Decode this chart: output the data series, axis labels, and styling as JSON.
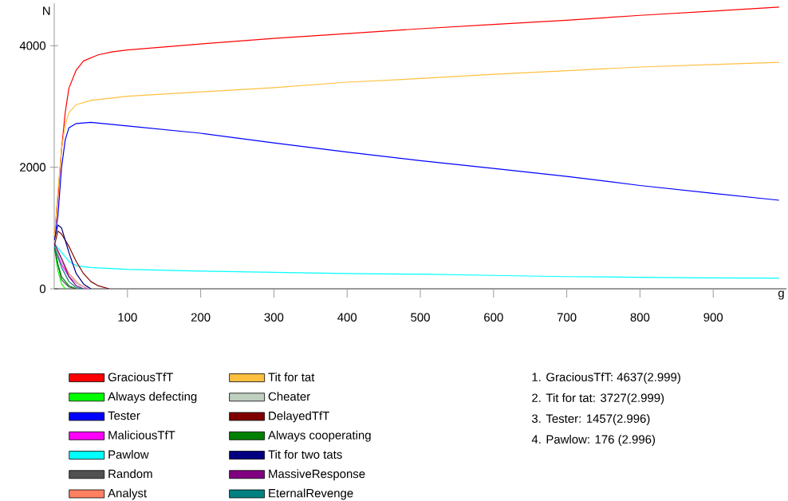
{
  "chart_data": {
    "type": "line",
    "xlabel": "g",
    "ylabel": "N",
    "xlim": [
      0,
      1000
    ],
    "ylim": [
      0,
      4700
    ],
    "xticks": [
      100,
      200,
      300,
      400,
      500,
      600,
      700,
      800,
      900
    ],
    "yticks": [
      0,
      2000,
      4000
    ],
    "grid": false,
    "legend": "bottom",
    "marker": "none",
    "line_style": "solid",
    "series": [
      {
        "name": "GraciousTfT",
        "color": "#ff0000",
        "x": [
          0,
          5,
          10,
          15,
          20,
          30,
          40,
          60,
          80,
          100,
          200,
          300,
          400,
          500,
          600,
          700,
          800,
          900,
          990
        ],
        "values": [
          800,
          1500,
          2300,
          2900,
          3300,
          3600,
          3750,
          3850,
          3900,
          3930,
          4030,
          4120,
          4200,
          4280,
          4350,
          4420,
          4500,
          4570,
          4637
        ]
      },
      {
        "name": "Always defecting",
        "color": "#00ff00",
        "x": [
          0,
          5,
          10,
          15
        ],
        "values": [
          700,
          300,
          80,
          0
        ]
      },
      {
        "name": "Tester",
        "color": "#0000ff",
        "x": [
          0,
          5,
          10,
          15,
          20,
          30,
          50,
          100,
          200,
          300,
          400,
          500,
          600,
          700,
          800,
          900,
          990
        ],
        "values": [
          800,
          1200,
          2000,
          2450,
          2650,
          2720,
          2740,
          2680,
          2560,
          2400,
          2250,
          2110,
          1980,
          1850,
          1700,
          1570,
          1457
        ]
      },
      {
        "name": "MaliciousTfT",
        "color": "#ff00ff",
        "x": [
          0,
          10,
          20,
          30,
          45
        ],
        "values": [
          700,
          400,
          200,
          100,
          0
        ]
      },
      {
        "name": "Pawlow",
        "color": "#00ffff",
        "x": [
          0,
          10,
          20,
          30,
          50,
          100,
          200,
          300,
          400,
          500,
          600,
          700,
          800,
          900,
          990
        ],
        "values": [
          750,
          600,
          450,
          380,
          350,
          320,
          290,
          270,
          250,
          240,
          220,
          200,
          190,
          180,
          176
        ]
      },
      {
        "name": "Random",
        "color": "#505050",
        "x": [
          0,
          5,
          10,
          20,
          30
        ],
        "values": [
          700,
          400,
          150,
          30,
          0
        ]
      },
      {
        "name": "Analyst",
        "color": "#ff8060",
        "x": [
          0,
          10,
          20,
          35,
          50
        ],
        "values": [
          700,
          500,
          250,
          60,
          0
        ]
      },
      {
        "name": "Tit for tat",
        "color": "#ffc040",
        "x": [
          0,
          5,
          10,
          15,
          20,
          30,
          50,
          100,
          200,
          300,
          400,
          500,
          600,
          700,
          800,
          900,
          990
        ],
        "values": [
          800,
          1600,
          2300,
          2700,
          2900,
          3030,
          3100,
          3170,
          3240,
          3310,
          3400,
          3460,
          3530,
          3590,
          3650,
          3690,
          3727
        ]
      },
      {
        "name": "Cheater",
        "color": "#c0d0c0",
        "x": [
          0,
          10,
          20,
          35,
          50
        ],
        "values": [
          700,
          450,
          220,
          50,
          0
        ]
      },
      {
        "name": "DelayedTfT",
        "color": "#800000",
        "x": [
          0,
          5,
          10,
          20,
          30,
          40,
          50,
          60,
          75
        ],
        "values": [
          700,
          950,
          900,
          700,
          450,
          250,
          120,
          50,
          0
        ]
      },
      {
        "name": "Always cooperating",
        "color": "#008000",
        "x": [
          0,
          5,
          10,
          20,
          30
        ],
        "values": [
          700,
          400,
          200,
          50,
          0
        ]
      },
      {
        "name": "Tit for two tats",
        "color": "#000080",
        "x": [
          0,
          5,
          10,
          20,
          30,
          40,
          50
        ],
        "values": [
          800,
          1050,
          1000,
          600,
          250,
          80,
          0
        ]
      },
      {
        "name": "MassiveResponse",
        "color": "#800080",
        "x": [
          0,
          10,
          20,
          30,
          40
        ],
        "values": [
          750,
          500,
          200,
          50,
          0
        ]
      },
      {
        "name": "EternalRevenge",
        "color": "#008080",
        "x": [
          0,
          10,
          20,
          30,
          40
        ],
        "values": [
          700,
          350,
          120,
          20,
          0
        ]
      }
    ],
    "annotations": [
      "1.  GraciousTfT:  4637(2.999)",
      "2.  Tit for tat:  3727(2.999)",
      "3.  Tester:  1457(2.996)",
      "4.  Pawlow:  176 (2.996)"
    ]
  }
}
